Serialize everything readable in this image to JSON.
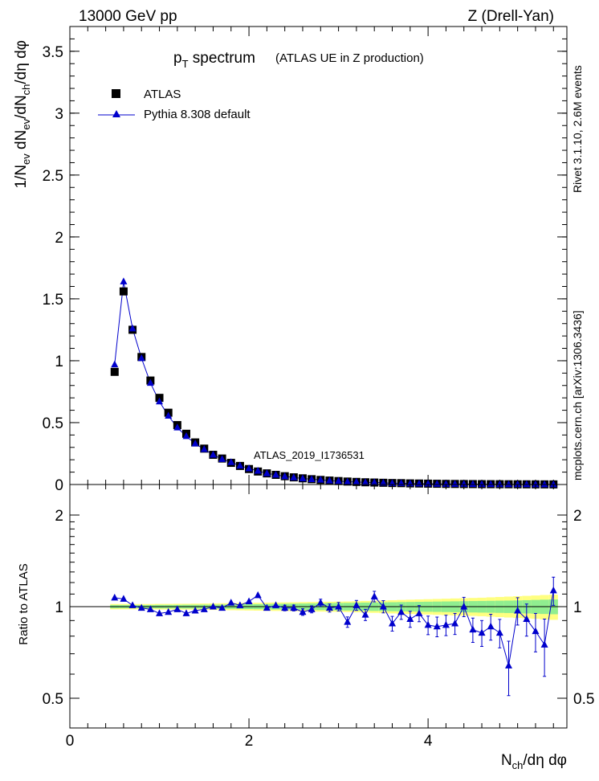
{
  "header": {
    "left": "13000 GeV pp",
    "right": "Z (Drell-Yan)"
  },
  "title": {
    "main": "p",
    "sub": "T",
    "rest": " spectrum",
    "note": "(ATLAS UE in Z production)"
  },
  "side_labels": {
    "rivet": "Rivet 3.1.10, 2.6M events",
    "mcplots": "mcplots.cern.ch [arXiv:1306.3436]"
  },
  "watermark": "ATLAS_2019_I1736531",
  "colors": {
    "atlas": "#000000",
    "pythia": "#0000cc",
    "band_inner": "#90ee90",
    "band_outer": "#ffff80"
  },
  "chart_data": [
    {
      "type": "scatter",
      "panel": "main",
      "ylabel": "1/N_ev dN_ev/dN_ch/dη dφ",
      "xlabel": "N_ch/dη dφ",
      "xlim": [
        0,
        5.55
      ],
      "ylim": [
        0,
        3.7
      ],
      "yticks": [
        "0",
        "0.5",
        "1",
        "1.5",
        "2",
        "2.5",
        "3",
        "3.5"
      ],
      "legend_position": "top-left",
      "x": [
        0.5,
        0.6,
        0.7,
        0.8,
        0.9,
        1.0,
        1.1,
        1.2,
        1.3,
        1.4,
        1.5,
        1.6,
        1.7,
        1.8,
        1.9,
        2.0,
        2.1,
        2.2,
        2.3,
        2.4,
        2.5,
        2.6,
        2.7,
        2.8,
        2.9,
        3.0,
        3.1,
        3.2,
        3.3,
        3.4,
        3.5,
        3.6,
        3.7,
        3.8,
        3.9,
        4.0,
        4.1,
        4.2,
        4.3,
        4.4,
        4.5,
        4.6,
        4.7,
        4.8,
        4.9,
        5.0,
        5.1,
        5.2,
        5.3,
        5.4
      ],
      "series": [
        {
          "name": "ATLAS",
          "marker": "square",
          "values": [
            0.91,
            1.56,
            1.25,
            1.03,
            0.84,
            0.7,
            0.58,
            0.48,
            0.41,
            0.34,
            0.29,
            0.24,
            0.21,
            0.175,
            0.15,
            0.125,
            0.105,
            0.09,
            0.078,
            0.067,
            0.058,
            0.05,
            0.043,
            0.037,
            0.032,
            0.028,
            0.024,
            0.021,
            0.018,
            0.016,
            0.014,
            0.012,
            0.011,
            0.009,
            0.008,
            0.007,
            0.006,
            0.005,
            0.0045,
            0.004,
            0.0035,
            0.003,
            0.0027,
            0.0024,
            0.0021,
            0.0018,
            0.0016,
            0.0014,
            0.0012,
            0.001
          ]
        },
        {
          "name": "Pythia 8.308 default",
          "marker": "triangle",
          "values": [
            0.97,
            1.64,
            1.26,
            1.02,
            0.82,
            0.67,
            0.555,
            0.46,
            0.39,
            0.33,
            0.285,
            0.24,
            0.205,
            0.18,
            0.152,
            0.13,
            0.11,
            0.09,
            0.079,
            0.066,
            0.057,
            0.049,
            0.042,
            0.038,
            0.032,
            0.028,
            0.022,
            0.021,
            0.017,
            0.017,
            0.0135,
            0.0105,
            0.0105,
            0.0082,
            0.0076,
            0.0061,
            0.0052,
            0.0044,
            0.004,
            0.004,
            0.0029,
            0.0025,
            0.0023,
            0.002,
            0.0014,
            0.0017,
            0.0014,
            0.0012,
            0.0009,
            0.0012
          ]
        }
      ]
    },
    {
      "type": "scatter",
      "panel": "ratio",
      "ylabel": "Ratio to ATLAS",
      "xlabel": "N_ch/dη dφ",
      "xlim": [
        0,
        5.55
      ],
      "ylim": [
        0.35,
        2.3
      ],
      "yticks": [
        "0.5",
        "1",
        "2"
      ],
      "xticks": [
        "0",
        "2",
        "4"
      ],
      "x": [
        0.5,
        0.6,
        0.7,
        0.8,
        0.9,
        1.0,
        1.1,
        1.2,
        1.3,
        1.4,
        1.5,
        1.6,
        1.7,
        1.8,
        1.9,
        2.0,
        2.1,
        2.2,
        2.3,
        2.4,
        2.5,
        2.6,
        2.7,
        2.8,
        2.9,
        3.0,
        3.1,
        3.2,
        3.3,
        3.4,
        3.5,
        3.6,
        3.7,
        3.8,
        3.9,
        4.0,
        4.1,
        4.2,
        4.3,
        4.4,
        4.5,
        4.6,
        4.7,
        4.8,
        4.9,
        5.0,
        5.1,
        5.2,
        5.3,
        5.4
      ],
      "band_inner_halfwidth": [
        0.012,
        0.012,
        0.012,
        0.012,
        0.012,
        0.013,
        0.013,
        0.013,
        0.014,
        0.014,
        0.015,
        0.015,
        0.016,
        0.016,
        0.017,
        0.018,
        0.019,
        0.02,
        0.021,
        0.022,
        0.023,
        0.024,
        0.025,
        0.026,
        0.027,
        0.028,
        0.029,
        0.03,
        0.031,
        0.032,
        0.033,
        0.034,
        0.035,
        0.036,
        0.037,
        0.038,
        0.039,
        0.04,
        0.041,
        0.042,
        0.043,
        0.044,
        0.045,
        0.046,
        0.047,
        0.048,
        0.05,
        0.052,
        0.054,
        0.056
      ],
      "band_outer_halfwidth": [
        0.02,
        0.02,
        0.02,
        0.02,
        0.02,
        0.021,
        0.021,
        0.022,
        0.022,
        0.023,
        0.024,
        0.025,
        0.026,
        0.027,
        0.028,
        0.029,
        0.03,
        0.031,
        0.032,
        0.033,
        0.034,
        0.035,
        0.036,
        0.037,
        0.038,
        0.039,
        0.04,
        0.042,
        0.044,
        0.046,
        0.048,
        0.05,
        0.052,
        0.054,
        0.056,
        0.058,
        0.06,
        0.062,
        0.064,
        0.066,
        0.068,
        0.07,
        0.073,
        0.076,
        0.079,
        0.082,
        0.085,
        0.088,
        0.092,
        0.095
      ],
      "series": [
        {
          "name": "Pythia 8.308 default",
          "values": [
            1.07,
            1.06,
            1.01,
            0.99,
            0.98,
            0.95,
            0.96,
            0.98,
            0.95,
            0.97,
            0.98,
            1.0,
            0.99,
            1.03,
            1.01,
            1.04,
            1.09,
            0.99,
            1.01,
            0.99,
            0.99,
            0.96,
            0.98,
            1.03,
            0.99,
            1.0,
            0.89,
            1.01,
            0.94,
            1.08,
            1.0,
            0.88,
            0.96,
            0.91,
            0.95,
            0.87,
            0.86,
            0.87,
            0.88,
            1.0,
            0.84,
            0.82,
            0.86,
            0.82,
            0.64,
            0.97,
            0.91,
            0.83,
            0.75,
            1.13
          ],
          "errors": [
            0.01,
            0.01,
            0.01,
            0.01,
            0.01,
            0.01,
            0.01,
            0.01,
            0.012,
            0.012,
            0.012,
            0.012,
            0.013,
            0.014,
            0.015,
            0.016,
            0.017,
            0.018,
            0.02,
            0.021,
            0.022,
            0.024,
            0.026,
            0.028,
            0.03,
            0.032,
            0.035,
            0.038,
            0.04,
            0.043,
            0.046,
            0.049,
            0.052,
            0.055,
            0.058,
            0.061,
            0.064,
            0.067,
            0.07,
            0.073,
            0.077,
            0.08,
            0.084,
            0.088,
            0.13,
            0.1,
            0.11,
            0.12,
            0.16,
            0.12
          ]
        }
      ]
    }
  ]
}
